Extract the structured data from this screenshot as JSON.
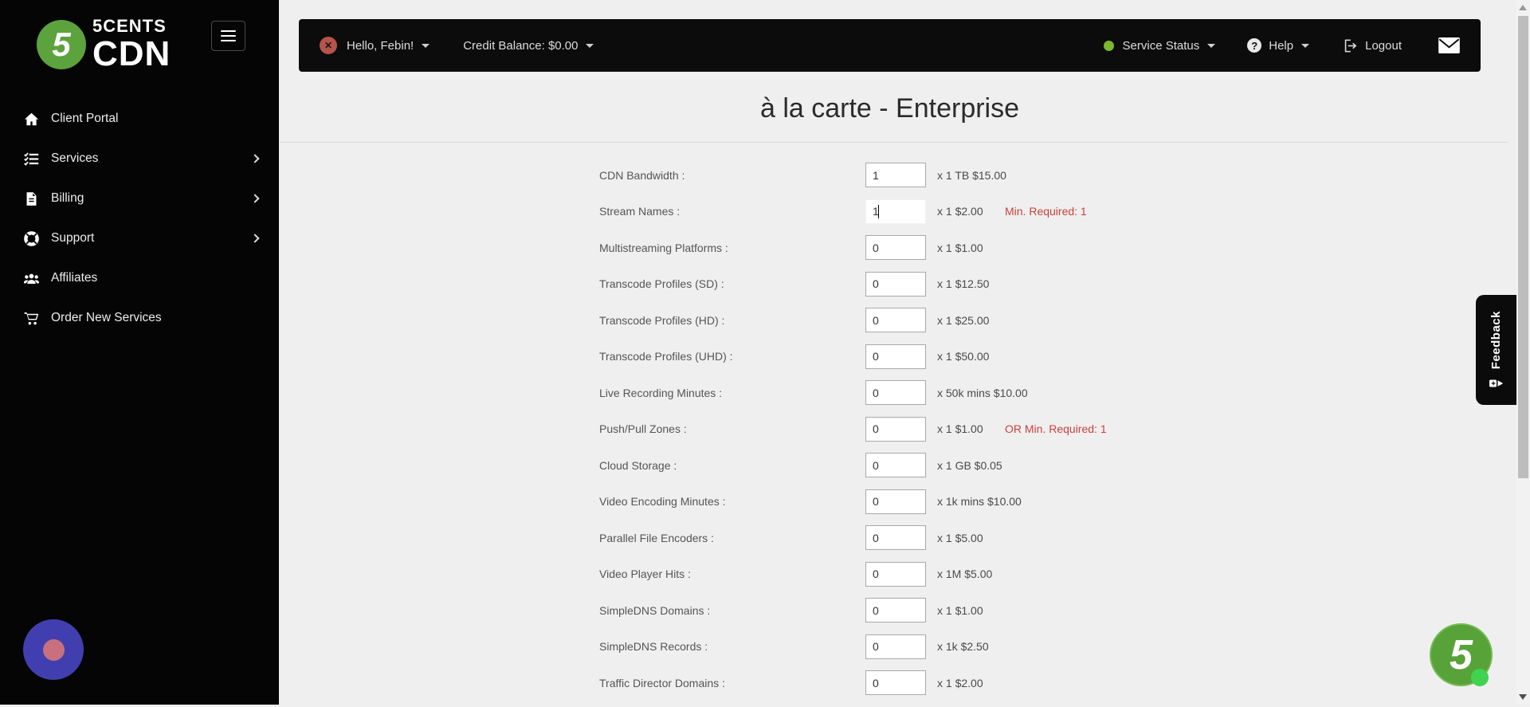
{
  "branding": {
    "logo_number": "5",
    "logo_top": "5CENTS",
    "logo_bottom": "CDN"
  },
  "topbar": {
    "greeting": "Hello, Febin!",
    "credit_balance": "Credit Balance: $0.00",
    "service_status": "Service Status",
    "help": "Help",
    "logout": "Logout"
  },
  "sidebar": {
    "items": [
      {
        "label": "Client Portal",
        "icon": "home-icon",
        "has_submenu": false
      },
      {
        "label": "Services",
        "icon": "services-icon",
        "has_submenu": true
      },
      {
        "label": "Billing",
        "icon": "billing-icon",
        "has_submenu": true
      },
      {
        "label": "Support",
        "icon": "support-icon",
        "has_submenu": true
      },
      {
        "label": "Affiliates",
        "icon": "affiliates-icon",
        "has_submenu": false
      },
      {
        "label": "Order New Services",
        "icon": "cart-icon",
        "has_submenu": false
      }
    ]
  },
  "page": {
    "title": "à la carte - Enterprise"
  },
  "form": {
    "rows": [
      {
        "label": "CDN Bandwidth :",
        "value": "1",
        "unit": "x 1 TB $15.00",
        "note": "",
        "focused": false
      },
      {
        "label": "Stream Names :",
        "value": "1",
        "unit": "x 1 $2.00",
        "note": "Min. Required: 1",
        "focused": true
      },
      {
        "label": "Multistreaming Platforms :",
        "value": "0",
        "unit": "x 1 $1.00",
        "note": "",
        "focused": false
      },
      {
        "label": "Transcode Profiles (SD) :",
        "value": "0",
        "unit": "x 1 $12.50",
        "note": "",
        "focused": false
      },
      {
        "label": "Transcode Profiles (HD) :",
        "value": "0",
        "unit": "x 1 $25.00",
        "note": "",
        "focused": false
      },
      {
        "label": "Transcode Profiles (UHD) :",
        "value": "0",
        "unit": "x 1 $50.00",
        "note": "",
        "focused": false
      },
      {
        "label": "Live Recording Minutes :",
        "value": "0",
        "unit": "x 50k mins $10.00",
        "note": "",
        "focused": false
      },
      {
        "label": "Push/Pull Zones :",
        "value": "0",
        "unit": "x 1 $1.00",
        "note": "OR Min. Required: 1",
        "focused": false
      },
      {
        "label": "Cloud Storage :",
        "value": "0",
        "unit": "x 1 GB $0.05",
        "note": "",
        "focused": false
      },
      {
        "label": "Video Encoding Minutes :",
        "value": "0",
        "unit": "x 1k mins $10.00",
        "note": "",
        "focused": false
      },
      {
        "label": "Parallel File Encoders :",
        "value": "0",
        "unit": "x 1 $5.00",
        "note": "",
        "focused": false
      },
      {
        "label": "Video Player Hits :",
        "value": "0",
        "unit": "x 1M $5.00",
        "note": "",
        "focused": false
      },
      {
        "label": "SimpleDNS Domains :",
        "value": "0",
        "unit": "x 1 $1.00",
        "note": "",
        "focused": false
      },
      {
        "label": "SimpleDNS Records :",
        "value": "0",
        "unit": "x 1k $2.50",
        "note": "",
        "focused": false
      },
      {
        "label": "Traffic Director Domains :",
        "value": "0",
        "unit": "x 1 $2.00",
        "note": "",
        "focused": false
      }
    ]
  },
  "feedback": {
    "label": "Feedback"
  },
  "colors": {
    "brand_green": "#5ca33d",
    "status_green": "#7cb82f",
    "alert_red": "#b5534d",
    "note_red": "#c9413c",
    "widget_blue": "#413fb0",
    "widget_pink": "#c9707f"
  }
}
